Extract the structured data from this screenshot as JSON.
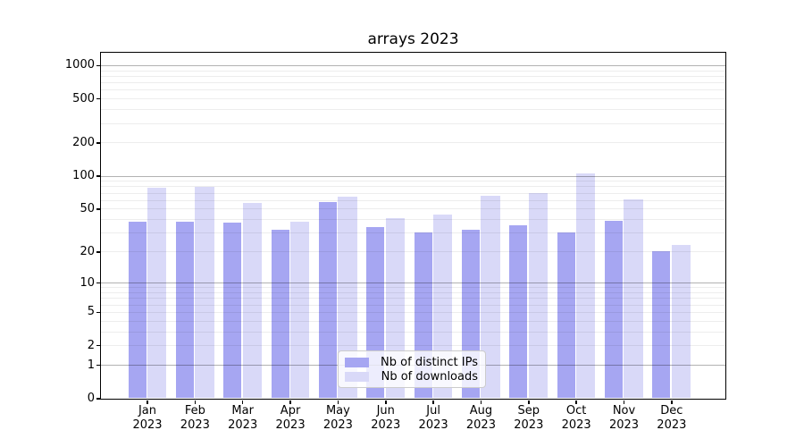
{
  "title": "arrays 2023",
  "chart_data": {
    "type": "bar",
    "title": "arrays 2023",
    "categories": [
      "Jan",
      "Feb",
      "Mar",
      "Apr",
      "May",
      "Jun",
      "Jul",
      "Aug",
      "Sep",
      "Oct",
      "Nov",
      "Dec"
    ],
    "category_year": "2023",
    "series": [
      {
        "name": "Nb of distinct IPs",
        "color": "#a6a6f2",
        "values": [
          38,
          38,
          37,
          32,
          57,
          34,
          30,
          32,
          35,
          30,
          39,
          20
        ]
      },
      {
        "name": "Nb of downloads",
        "color": "#d9d9f8",
        "values": [
          78,
          79,
          56,
          38,
          64,
          41,
          44,
          66,
          69,
          105,
          61,
          23
        ]
      }
    ],
    "xlabel": "",
    "ylabel": "",
    "yscale": "log(1+x)",
    "yticks": [
      0,
      1,
      2,
      5,
      10,
      20,
      50,
      100,
      200,
      500,
      1000
    ],
    "ylim": [
      0,
      1280
    ],
    "grid": true,
    "grid_major_at": [
      1,
      10,
      100,
      1000
    ],
    "legend_position": "lower center"
  }
}
